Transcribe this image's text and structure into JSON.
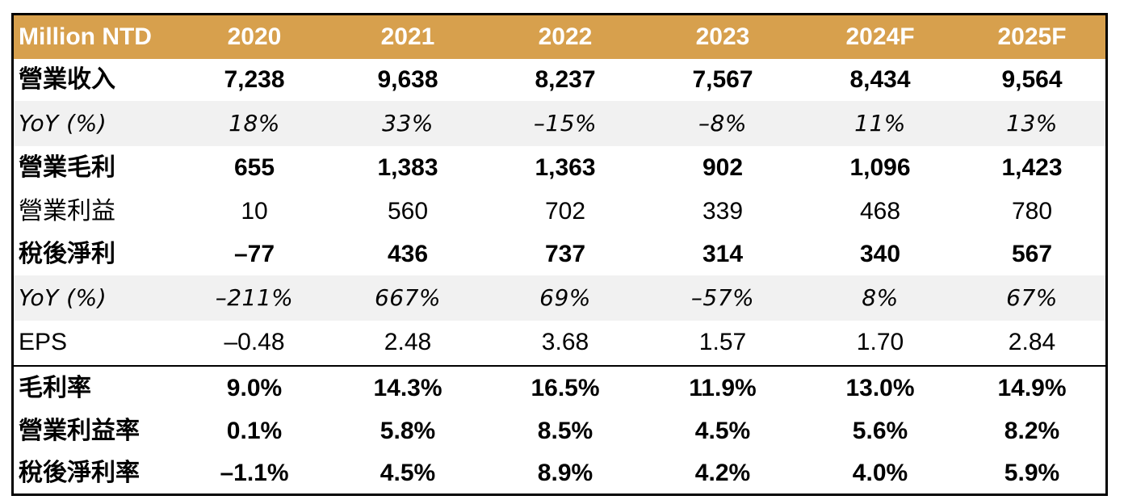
{
  "table": {
    "header": [
      "Million NTD",
      "2020",
      "2021",
      "2022",
      "2023",
      "2024F",
      "2025F"
    ],
    "rows": [
      {
        "label": "營業收入",
        "values": [
          "7,238",
          "9,638",
          "8,237",
          "7,567",
          "8,434",
          "9,564"
        ],
        "style": "bold"
      },
      {
        "label": "YoY (%)",
        "values": [
          "18%",
          "33%",
          "–15%",
          "–8%",
          "11%",
          "13%"
        ],
        "style": "italic"
      },
      {
        "label": "營業毛利",
        "values": [
          "655",
          "1,383",
          "1,363",
          "902",
          "1,096",
          "1,423"
        ],
        "style": "bold"
      },
      {
        "label": "營業利益",
        "values": [
          "10",
          "560",
          "702",
          "339",
          "468",
          "780"
        ],
        "style": "normal"
      },
      {
        "label": "稅後淨利",
        "values": [
          "–77",
          "436",
          "737",
          "314",
          "340",
          "567"
        ],
        "style": "bold"
      },
      {
        "label": "YoY (%)",
        "values": [
          "–211%",
          "667%",
          "69%",
          "–57%",
          "8%",
          "67%"
        ],
        "style": "italic"
      },
      {
        "label": "EPS",
        "values": [
          "–0.48",
          "2.48",
          "3.68",
          "1.57",
          "1.70",
          "2.84"
        ],
        "style": "normal"
      },
      {
        "label": "毛利率",
        "values": [
          "9.0%",
          "14.3%",
          "16.5%",
          "11.9%",
          "13.0%",
          "14.9%"
        ],
        "style": "bold"
      },
      {
        "label": "營業利益率",
        "values": [
          "0.1%",
          "5.8%",
          "8.5%",
          "4.5%",
          "5.6%",
          "8.2%"
        ],
        "style": "bold"
      },
      {
        "label": "稅後淨利率",
        "values": [
          "–1.1%",
          "4.5%",
          "8.9%",
          "4.2%",
          "4.0%",
          "5.9%"
        ],
        "style": "bold"
      }
    ]
  },
  "colors": {
    "header_background": "#d7a04d",
    "header_text": "#ffffff",
    "shaded_row": "#f1f1f1",
    "border": "#000000"
  }
}
